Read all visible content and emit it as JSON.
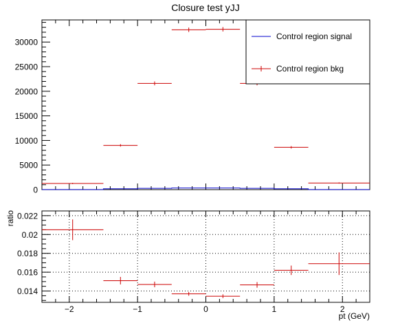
{
  "chart_data": [
    {
      "type": "histogram",
      "title": "Closure test yJJ",
      "xlabel": "",
      "ylabel": "",
      "xlim": [
        -2.4,
        2.4
      ],
      "ylim": [
        0,
        34500
      ],
      "xticks": [
        -2,
        -1,
        0,
        1,
        2
      ],
      "yticks": [
        0,
        5000,
        10000,
        15000,
        20000,
        25000,
        30000
      ],
      "grid": false,
      "legend_position": "top-right",
      "series": [
        {
          "name": "Control region signal",
          "color": "#0000cc",
          "style": "line",
          "bins": [
            {
              "xlo": -2.4,
              "xhi": -1.5,
              "y": 20
            },
            {
              "xlo": -1.5,
              "xhi": -1.0,
              "y": 180
            },
            {
              "xlo": -1.0,
              "xhi": -0.5,
              "y": 260
            },
            {
              "xlo": -0.5,
              "xhi": 0.0,
              "y": 330
            },
            {
              "xlo": 0.0,
              "xhi": 0.5,
              "y": 330
            },
            {
              "xlo": 0.5,
              "xhi": 1.0,
              "y": 260
            },
            {
              "xlo": 1.0,
              "xhi": 1.5,
              "y": 180
            },
            {
              "xlo": 1.5,
              "xhi": 2.4,
              "y": 20
            }
          ]
        },
        {
          "name": "Control region bkg",
          "color": "#cc0000",
          "style": "errorbar",
          "bins": [
            {
              "xlo": -2.4,
              "xhi": -1.5,
              "y": 1250,
              "err": 120
            },
            {
              "xlo": -1.5,
              "xhi": -1.0,
              "y": 9000,
              "err": 250
            },
            {
              "xlo": -1.0,
              "xhi": -0.5,
              "y": 21600,
              "err": 400
            },
            {
              "xlo": -0.5,
              "xhi": 0.0,
              "y": 32500,
              "err": 450
            },
            {
              "xlo": 0.0,
              "xhi": 0.5,
              "y": 32600,
              "err": 450
            },
            {
              "xlo": 0.5,
              "xhi": 1.0,
              "y": 21600,
              "err": 400
            },
            {
              "xlo": 1.0,
              "xhi": 1.5,
              "y": 8600,
              "err": 250
            },
            {
              "xlo": 1.5,
              "xhi": 2.4,
              "y": 1350,
              "err": 120
            }
          ]
        }
      ]
    },
    {
      "type": "histogram",
      "title": "",
      "xlabel": "pt (GeV)",
      "ylabel": "ratio",
      "xlim": [
        -2.4,
        2.4
      ],
      "ylim": [
        0.0128,
        0.0225
      ],
      "xticks": [
        -2,
        -1,
        0,
        1,
        2
      ],
      "yticks": [
        0.014,
        0.016,
        0.018,
        0.02,
        0.022
      ],
      "grid": true,
      "series": [
        {
          "name": "",
          "color": "#cc0000",
          "style": "errorbar",
          "bins": [
            {
              "xlo": -2.4,
              "xhi": -1.5,
              "y": 0.0205,
              "err": 0.0011
            },
            {
              "xlo": -1.5,
              "xhi": -1.0,
              "y": 0.0151,
              "err": 0.0004
            },
            {
              "xlo": -1.0,
              "xhi": -0.5,
              "y": 0.0147,
              "err": 0.0003
            },
            {
              "xlo": -0.5,
              "xhi": 0.0,
              "y": 0.0137,
              "err": 0.0002
            },
            {
              "xlo": 0.0,
              "xhi": 0.5,
              "y": 0.01345,
              "err": 0.0002
            },
            {
              "xlo": 0.5,
              "xhi": 1.0,
              "y": 0.01465,
              "err": 0.0003
            },
            {
              "xlo": 1.0,
              "xhi": 1.5,
              "y": 0.0162,
              "err": 0.0005
            },
            {
              "xlo": 1.5,
              "xhi": 2.4,
              "y": 0.0169,
              "err": 0.0012
            }
          ]
        }
      ]
    }
  ]
}
